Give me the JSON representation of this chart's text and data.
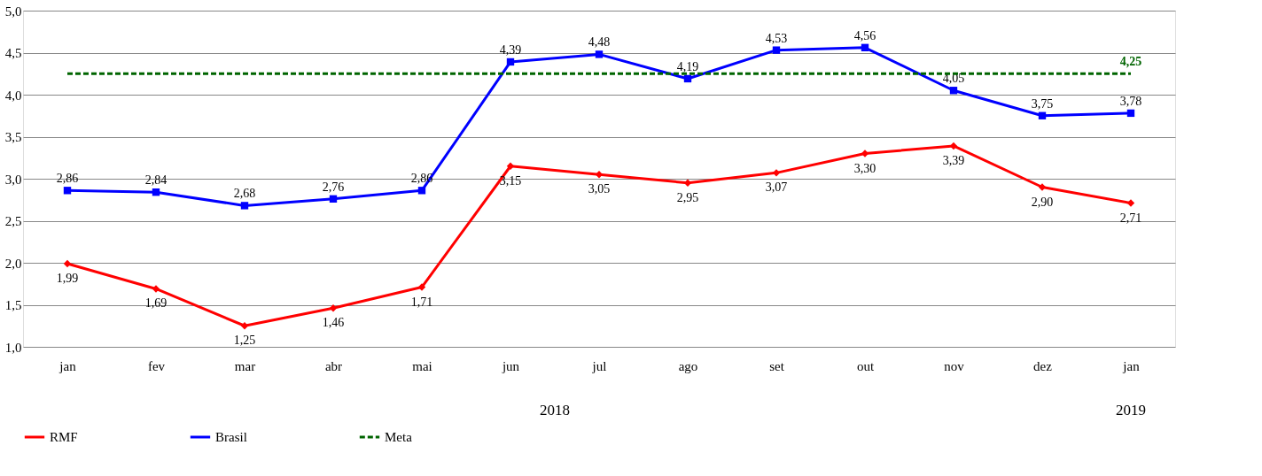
{
  "chart_data": {
    "type": "line",
    "categories": [
      "jan",
      "fev",
      "mar",
      "abr",
      "mai",
      "jun",
      "jul",
      "ago",
      "set",
      "out",
      "nov",
      "dez",
      "jan"
    ],
    "series": [
      {
        "name": "RMF",
        "color": "#ff0000",
        "marker": "diamond",
        "line_style": "solid",
        "values": [
          1.99,
          1.69,
          1.25,
          1.46,
          1.71,
          3.15,
          3.05,
          2.95,
          3.07,
          3.3,
          3.39,
          2.9,
          2.71
        ],
        "value_labels": [
          "1,99",
          "1,69",
          "1,25",
          "1,46",
          "1,71",
          "3,15",
          "3,05",
          "2,95",
          "3,07",
          "3,30",
          "3,39",
          "2,90",
          "2,71"
        ]
      },
      {
        "name": "Brasil",
        "color": "#0000ff",
        "marker": "square",
        "line_style": "solid",
        "values": [
          2.86,
          2.84,
          2.68,
          2.76,
          2.86,
          4.39,
          4.48,
          4.19,
          4.53,
          4.56,
          4.05,
          3.75,
          3.78
        ],
        "value_labels": [
          "2,86",
          "2,84",
          "2,68",
          "2,76",
          "2,86",
          "4,39",
          "4,48",
          "4,19",
          "4,53",
          "4,56",
          "4,05",
          "3,75",
          "3,78"
        ]
      },
      {
        "name": "Meta",
        "color": "#006400",
        "marker": "none",
        "line_style": "dashed",
        "values": [
          4.25,
          4.25,
          4.25,
          4.25,
          4.25,
          4.25,
          4.25,
          4.25,
          4.25,
          4.25,
          4.25,
          4.25,
          4.25
        ],
        "value_labels": [
          null,
          null,
          null,
          null,
          null,
          null,
          null,
          null,
          null,
          null,
          null,
          null,
          "4,25"
        ]
      }
    ],
    "ylim": [
      1.0,
      5.0
    ],
    "yticks": [
      {
        "value": 1.0,
        "label": "1,0"
      },
      {
        "value": 1.5,
        "label": "1,5"
      },
      {
        "value": 2.0,
        "label": "2,0"
      },
      {
        "value": 2.5,
        "label": "2,5"
      },
      {
        "value": 3.0,
        "label": "3,0"
      },
      {
        "value": 3.5,
        "label": "3,5"
      },
      {
        "value": 4.0,
        "label": "4,0"
      },
      {
        "value": 4.5,
        "label": "4,5"
      },
      {
        "value": 5.0,
        "label": "5,0"
      }
    ],
    "grid": "y",
    "legend": "bottom",
    "annotations": [
      "2018",
      "2019"
    ]
  }
}
